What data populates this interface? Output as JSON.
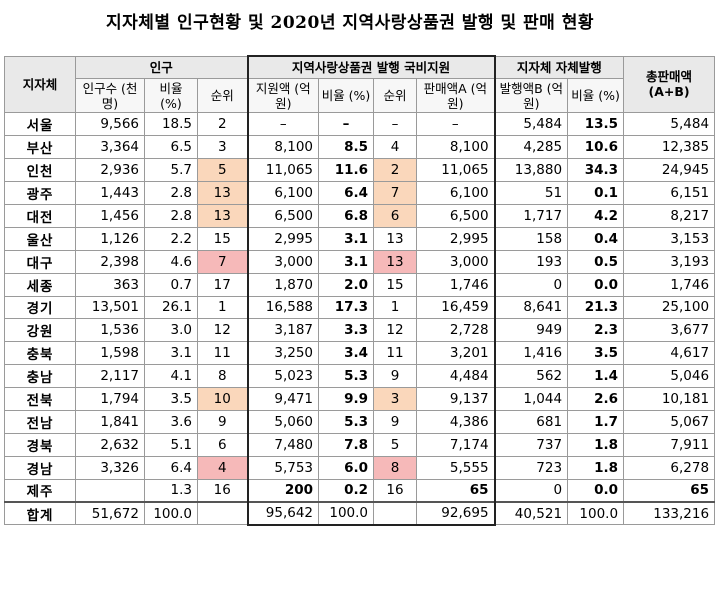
{
  "title": "지자체별 인구현황 및 2020년 지역사랑상품권 발행 및 판매 현황",
  "headers": {
    "region": "지자체",
    "population_group": "인구",
    "national_group": "지역사랑상품권 발행 국비지원",
    "local_group": "지자체 자체발행",
    "total": "총판매액 (A+B)",
    "pop_count": "인구수 (천명)",
    "pop_ratio": "비율 (%)",
    "pop_rank": "순위",
    "nat_amount": "지원액 (억원)",
    "nat_ratio": "비율 (%)",
    "nat_rank": "순위",
    "nat_sales": "판매액A (억원)",
    "local_amount": "발행액B (억원)",
    "local_ratio": "비율 (%)"
  },
  "rows": [
    {
      "region": "서울",
      "pop": "9,566",
      "pop_ratio": "18.5",
      "pop_rank": "2",
      "pop_hl": "",
      "nat_amount": "–",
      "nat_ratio": "–",
      "nat_rank": "–",
      "nat_hl": "",
      "nat_sales": "–",
      "local_amount": "5,484",
      "local_ratio": "13.5",
      "total": "5,484"
    },
    {
      "region": "부산",
      "pop": "3,364",
      "pop_ratio": "6.5",
      "pop_rank": "3",
      "pop_hl": "",
      "nat_amount": "8,100",
      "nat_ratio": "8.5",
      "nat_rank": "4",
      "nat_hl": "",
      "nat_sales": "8,100",
      "local_amount": "4,285",
      "local_ratio": "10.6",
      "total": "12,385"
    },
    {
      "region": "인천",
      "pop": "2,936",
      "pop_ratio": "5.7",
      "pop_rank": "5",
      "pop_hl": "hl1",
      "nat_amount": "11,065",
      "nat_ratio": "11.6",
      "nat_rank": "2",
      "nat_hl": "hl1",
      "nat_sales": "11,065",
      "local_amount": "13,880",
      "local_ratio": "34.3",
      "total": "24,945"
    },
    {
      "region": "광주",
      "pop": "1,443",
      "pop_ratio": "2.8",
      "pop_rank": "13",
      "pop_hl": "hl1",
      "nat_amount": "6,100",
      "nat_ratio": "6.4",
      "nat_rank": "7",
      "nat_hl": "hl1",
      "nat_sales": "6,100",
      "local_amount": "51",
      "local_ratio": "0.1",
      "total": "6,151"
    },
    {
      "region": "대전",
      "pop": "1,456",
      "pop_ratio": "2.8",
      "pop_rank": "13",
      "pop_hl": "hl1",
      "nat_amount": "6,500",
      "nat_ratio": "6.8",
      "nat_rank": "6",
      "nat_hl": "hl1",
      "nat_sales": "6,500",
      "local_amount": "1,717",
      "local_ratio": "4.2",
      "total": "8,217"
    },
    {
      "region": "울산",
      "pop": "1,126",
      "pop_ratio": "2.2",
      "pop_rank": "15",
      "pop_hl": "",
      "nat_amount": "2,995",
      "nat_ratio": "3.1",
      "nat_rank": "13",
      "nat_hl": "",
      "nat_sales": "2,995",
      "local_amount": "158",
      "local_ratio": "0.4",
      "total": "3,153"
    },
    {
      "region": "대구",
      "pop": "2,398",
      "pop_ratio": "4.6",
      "pop_rank": "7",
      "pop_hl": "hl2",
      "nat_amount": "3,000",
      "nat_ratio": "3.1",
      "nat_rank": "13",
      "nat_hl": "hl2",
      "nat_sales": "3,000",
      "local_amount": "193",
      "local_ratio": "0.5",
      "total": "3,193"
    },
    {
      "region": "세종",
      "pop": "363",
      "pop_ratio": "0.7",
      "pop_rank": "17",
      "pop_hl": "",
      "nat_amount": "1,870",
      "nat_ratio": "2.0",
      "nat_rank": "15",
      "nat_hl": "",
      "nat_sales": "1,746",
      "local_amount": "0",
      "local_ratio": "0.0",
      "total": "1,746"
    },
    {
      "region": "경기",
      "pop": "13,501",
      "pop_ratio": "26.1",
      "pop_rank": "1",
      "pop_hl": "",
      "nat_amount": "16,588",
      "nat_ratio": "17.3",
      "nat_rank": "1",
      "nat_hl": "",
      "nat_sales": "16,459",
      "local_amount": "8,641",
      "local_ratio": "21.3",
      "total": "25,100"
    },
    {
      "region": "강원",
      "pop": "1,536",
      "pop_ratio": "3.0",
      "pop_rank": "12",
      "pop_hl": "",
      "nat_amount": "3,187",
      "nat_ratio": "3.3",
      "nat_rank": "12",
      "nat_hl": "",
      "nat_sales": "2,728",
      "local_amount": "949",
      "local_ratio": "2.3",
      "total": "3,677"
    },
    {
      "region": "충북",
      "pop": "1,598",
      "pop_ratio": "3.1",
      "pop_rank": "11",
      "pop_hl": "",
      "nat_amount": "3,250",
      "nat_ratio": "3.4",
      "nat_rank": "11",
      "nat_hl": "",
      "nat_sales": "3,201",
      "local_amount": "1,416",
      "local_ratio": "3.5",
      "total": "4,617"
    },
    {
      "region": "충남",
      "pop": "2,117",
      "pop_ratio": "4.1",
      "pop_rank": "8",
      "pop_hl": "",
      "nat_amount": "5,023",
      "nat_ratio": "5.3",
      "nat_rank": "9",
      "nat_hl": "",
      "nat_sales": "4,484",
      "local_amount": "562",
      "local_ratio": "1.4",
      "total": "5,046"
    },
    {
      "region": "전북",
      "pop": "1,794",
      "pop_ratio": "3.5",
      "pop_rank": "10",
      "pop_hl": "hl1",
      "nat_amount": "9,471",
      "nat_ratio": "9.9",
      "nat_rank": "3",
      "nat_hl": "hl1",
      "nat_sales": "9,137",
      "local_amount": "1,044",
      "local_ratio": "2.6",
      "total": "10,181"
    },
    {
      "region": "전남",
      "pop": "1,841",
      "pop_ratio": "3.6",
      "pop_rank": "9",
      "pop_hl": "",
      "nat_amount": "5,060",
      "nat_ratio": "5.3",
      "nat_rank": "9",
      "nat_hl": "",
      "nat_sales": "4,386",
      "local_amount": "681",
      "local_ratio": "1.7",
      "total": "5,067"
    },
    {
      "region": "경북",
      "pop": "2,632",
      "pop_ratio": "5.1",
      "pop_rank": "6",
      "pop_hl": "",
      "nat_amount": "7,480",
      "nat_ratio": "7.8",
      "nat_rank": "5",
      "nat_hl": "",
      "nat_sales": "7,174",
      "local_amount": "737",
      "local_ratio": "1.8",
      "total": "7,911"
    },
    {
      "region": "경남",
      "pop": "3,326",
      "pop_ratio": "6.4",
      "pop_rank": "4",
      "pop_hl": "hl2",
      "nat_amount": "5,753",
      "nat_ratio": "6.0",
      "nat_rank": "8",
      "nat_hl": "hl2",
      "nat_sales": "5,555",
      "local_amount": "723",
      "local_ratio": "1.8",
      "total": "6,278"
    },
    {
      "region": "제주",
      "pop": "",
      "pop_ratio": "1.3",
      "pop_rank": "16",
      "pop_hl": "",
      "nat_amount": "200",
      "nat_ratio": "0.2",
      "nat_rank": "16",
      "nat_hl": "",
      "nat_sales": "65",
      "local_amount": "0",
      "local_ratio": "0.0",
      "total": "65",
      "bold_amount": true
    }
  ],
  "total_row": {
    "region": "합계",
    "pop": "51,672",
    "pop_ratio": "100.0",
    "pop_rank": "",
    "nat_amount": "95,642",
    "nat_ratio": "100.0",
    "nat_rank": "",
    "nat_sales": "92,695",
    "local_amount": "40,521",
    "local_ratio": "100.0",
    "total": "133,216"
  }
}
